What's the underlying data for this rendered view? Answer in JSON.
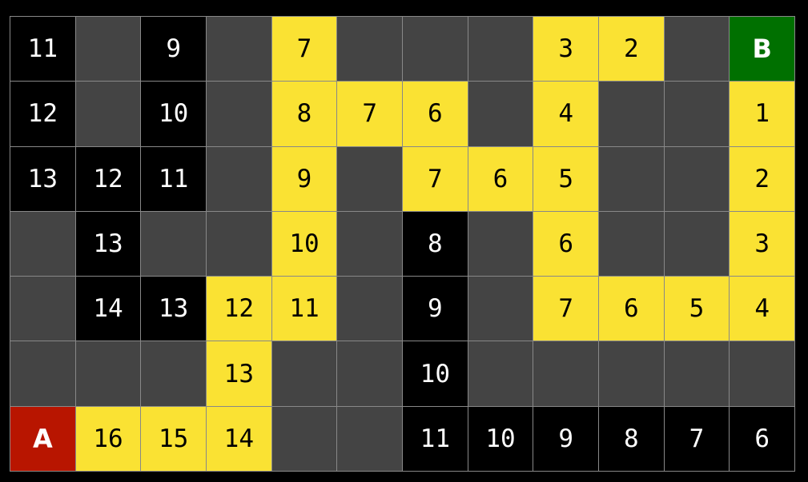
{
  "colors": {
    "wall": "#444444",
    "explored": "#000000",
    "path": "#fae233",
    "start": "#b81500",
    "end": "#007000"
  },
  "grid": [
    [
      {
        "t": "black",
        "v": "11"
      },
      {
        "t": "wall",
        "v": ""
      },
      {
        "t": "black",
        "v": "9"
      },
      {
        "t": "wall",
        "v": ""
      },
      {
        "t": "path",
        "v": "7"
      },
      {
        "t": "wall",
        "v": ""
      },
      {
        "t": "wall",
        "v": ""
      },
      {
        "t": "wall",
        "v": ""
      },
      {
        "t": "path",
        "v": "3"
      },
      {
        "t": "path",
        "v": "2"
      },
      {
        "t": "wall",
        "v": ""
      },
      {
        "t": "end",
        "v": "B"
      }
    ],
    [
      {
        "t": "black",
        "v": "12"
      },
      {
        "t": "wall",
        "v": ""
      },
      {
        "t": "black",
        "v": "10"
      },
      {
        "t": "wall",
        "v": ""
      },
      {
        "t": "path",
        "v": "8"
      },
      {
        "t": "path",
        "v": "7"
      },
      {
        "t": "path",
        "v": "6"
      },
      {
        "t": "wall",
        "v": ""
      },
      {
        "t": "path",
        "v": "4"
      },
      {
        "t": "wall",
        "v": ""
      },
      {
        "t": "wall",
        "v": ""
      },
      {
        "t": "path",
        "v": "1"
      }
    ],
    [
      {
        "t": "black",
        "v": "13"
      },
      {
        "t": "black",
        "v": "12"
      },
      {
        "t": "black",
        "v": "11"
      },
      {
        "t": "wall",
        "v": ""
      },
      {
        "t": "path",
        "v": "9"
      },
      {
        "t": "wall",
        "v": ""
      },
      {
        "t": "path",
        "v": "7"
      },
      {
        "t": "path",
        "v": "6"
      },
      {
        "t": "path",
        "v": "5"
      },
      {
        "t": "wall",
        "v": ""
      },
      {
        "t": "wall",
        "v": ""
      },
      {
        "t": "path",
        "v": "2"
      }
    ],
    [
      {
        "t": "wall",
        "v": ""
      },
      {
        "t": "black",
        "v": "13"
      },
      {
        "t": "wall",
        "v": ""
      },
      {
        "t": "wall",
        "v": ""
      },
      {
        "t": "path",
        "v": "10"
      },
      {
        "t": "wall",
        "v": ""
      },
      {
        "t": "black",
        "v": "8"
      },
      {
        "t": "wall",
        "v": ""
      },
      {
        "t": "path",
        "v": "6"
      },
      {
        "t": "wall",
        "v": ""
      },
      {
        "t": "wall",
        "v": ""
      },
      {
        "t": "path",
        "v": "3"
      }
    ],
    [
      {
        "t": "wall",
        "v": ""
      },
      {
        "t": "black",
        "v": "14"
      },
      {
        "t": "black",
        "v": "13"
      },
      {
        "t": "path",
        "v": "12"
      },
      {
        "t": "path",
        "v": "11"
      },
      {
        "t": "wall",
        "v": ""
      },
      {
        "t": "black",
        "v": "9"
      },
      {
        "t": "wall",
        "v": ""
      },
      {
        "t": "path",
        "v": "7"
      },
      {
        "t": "path",
        "v": "6"
      },
      {
        "t": "path",
        "v": "5"
      },
      {
        "t": "path",
        "v": "4"
      }
    ],
    [
      {
        "t": "wall",
        "v": ""
      },
      {
        "t": "wall",
        "v": ""
      },
      {
        "t": "wall",
        "v": ""
      },
      {
        "t": "path",
        "v": "13"
      },
      {
        "t": "wall",
        "v": ""
      },
      {
        "t": "wall",
        "v": ""
      },
      {
        "t": "black",
        "v": "10"
      },
      {
        "t": "wall",
        "v": ""
      },
      {
        "t": "wall",
        "v": ""
      },
      {
        "t": "wall",
        "v": ""
      },
      {
        "t": "wall",
        "v": ""
      },
      {
        "t": "wall",
        "v": ""
      }
    ],
    [
      {
        "t": "start",
        "v": "A"
      },
      {
        "t": "path",
        "v": "16"
      },
      {
        "t": "path",
        "v": "15"
      },
      {
        "t": "path",
        "v": "14"
      },
      {
        "t": "wall",
        "v": ""
      },
      {
        "t": "wall",
        "v": ""
      },
      {
        "t": "black",
        "v": "11"
      },
      {
        "t": "black",
        "v": "10"
      },
      {
        "t": "black",
        "v": "9"
      },
      {
        "t": "black",
        "v": "8"
      },
      {
        "t": "black",
        "v": "7"
      },
      {
        "t": "black",
        "v": "6"
      }
    ]
  ]
}
